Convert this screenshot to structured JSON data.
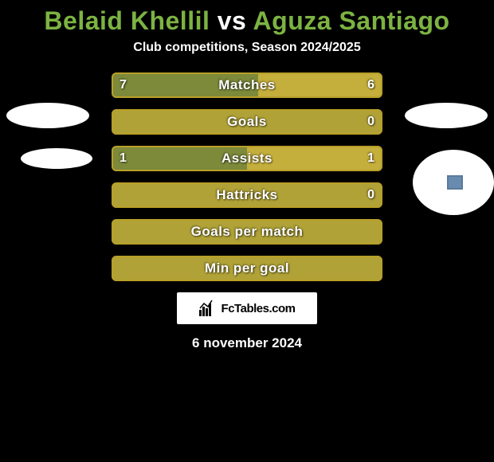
{
  "title": {
    "player1": "Belaid Khellil",
    "vs": "vs",
    "player2": "Aguza Santiago",
    "name_color": "#7cb342",
    "vs_color": "#ffffff"
  },
  "subtitle": "Club competitions, Season 2024/2025",
  "colors": {
    "background": "#000000",
    "border": "#b8a028",
    "left_fill": "#7c8a3a",
    "right_fill": "#c5af3c",
    "full_fill": "#b0a237"
  },
  "bar_style": {
    "height": 32,
    "gap": 14,
    "border_radius": 6,
    "border_width": 2,
    "label_fontsize": 17,
    "value_fontsize": 16
  },
  "bars": [
    {
      "label": "Matches",
      "left_val": "7",
      "right_val": "6",
      "left_pct": 54,
      "right_pct": 46,
      "show_vals": true
    },
    {
      "label": "Goals",
      "left_val": "",
      "right_val": "0",
      "left_pct": 100,
      "right_pct": 0,
      "show_vals": false,
      "show_right_val": true,
      "full": true
    },
    {
      "label": "Assists",
      "left_val": "1",
      "right_val": "1",
      "left_pct": 50,
      "right_pct": 50,
      "show_vals": true
    },
    {
      "label": "Hattricks",
      "left_val": "",
      "right_val": "0",
      "left_pct": 100,
      "right_pct": 0,
      "show_vals": false,
      "show_right_val": true,
      "full": true
    },
    {
      "label": "Goals per match",
      "left_val": "",
      "right_val": "",
      "left_pct": 100,
      "right_pct": 0,
      "show_vals": false,
      "full": true
    },
    {
      "label": "Min per goal",
      "left_val": "",
      "right_val": "",
      "left_pct": 100,
      "right_pct": 0,
      "show_vals": false,
      "full": true
    }
  ],
  "logo": {
    "prefix": "Fc",
    "suffix": "Tables.com"
  },
  "date": "6 november 2024"
}
